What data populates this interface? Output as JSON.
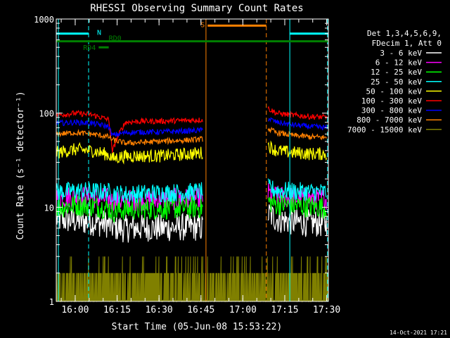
{
  "chart_data": {
    "type": "line",
    "title": "RHESSI Observing Summary Count Rates",
    "xlabel": "Start Time (05-Jun-08 15:53:22)",
    "ylabel": "Count Rate (s⁻¹ detector⁻¹)",
    "yscale": "log",
    "ylim": [
      1,
      1000
    ],
    "xlim": [
      15.887,
      17.51
    ],
    "x_ticks": [
      {
        "v": 16.0,
        "label": "16:00"
      },
      {
        "v": 16.25,
        "label": "16:15"
      },
      {
        "v": 16.5,
        "label": "16:30"
      },
      {
        "v": 16.75,
        "label": "16:45"
      },
      {
        "v": 17.0,
        "label": "17:00"
      },
      {
        "v": 17.25,
        "label": "17:15"
      },
      {
        "v": 17.5,
        "label": "17:30"
      }
    ],
    "y_ticks": [
      {
        "v": 1,
        "label": "1"
      },
      {
        "v": 10,
        "label": "10"
      },
      {
        "v": 100,
        "label": "100"
      },
      {
        "v": 1000,
        "label": "1000"
      }
    ],
    "legend_header": [
      "Det 1,3,4,5,6,9,",
      "FDecim 1, Att 0"
    ],
    "series": [
      {
        "name": "3 - 6 keV",
        "color": "#ffffff",
        "segments": [
          {
            "x": [
              15.887,
              16.0,
              16.1,
              16.2,
              16.22,
              16.3,
              16.4,
              16.5,
              16.6,
              16.7,
              16.76
            ],
            "y": [
              7.5,
              7.2,
              7.0,
              6.6,
              6.2,
              5.9,
              6.1,
              6.0,
              6.1,
              6.2,
              6.0
            ]
          },
          {
            "x": [
              17.15,
              17.2,
              17.3,
              17.4,
              17.5
            ],
            "y": [
              8.5,
              7.5,
              7.0,
              6.8,
              6.7
            ]
          }
        ],
        "noise": 0.15
      },
      {
        "name": "6 - 12 keV",
        "color": "#ff00ff",
        "segments": [
          {
            "x": [
              15.887,
              16.0,
              16.1,
              16.2,
              16.22,
              16.3,
              16.4,
              16.5,
              16.6,
              16.7,
              16.76
            ],
            "y": [
              12.5,
              13,
              12.8,
              12.2,
              11.5,
              11.8,
              12.0,
              12.1,
              12.2,
              12.3,
              12.4
            ]
          },
          {
            "x": [
              17.15,
              17.2,
              17.3,
              17.4,
              17.5
            ],
            "y": [
              14,
              13,
              12.6,
              12.3,
              12.2
            ]
          }
        ],
        "noise": 0.12
      },
      {
        "name": "12 - 25 keV",
        "color": "#00ff00",
        "segments": [
          {
            "x": [
              15.887,
              16.0,
              16.1,
              16.2,
              16.22,
              16.3,
              16.4,
              16.5,
              16.6,
              16.7,
              16.76
            ],
            "y": [
              10,
              10.5,
              10.3,
              9.8,
              9.0,
              9.5,
              9.6,
              9.7,
              9.8,
              9.9,
              10
            ]
          },
          {
            "x": [
              17.15,
              17.2,
              17.3,
              17.4,
              17.5
            ],
            "y": [
              11.5,
              10.8,
              10.4,
              10.2,
              10
            ]
          }
        ],
        "noise": 0.12
      },
      {
        "name": "25 - 50 keV",
        "color": "#00ffff",
        "segments": [
          {
            "x": [
              15.887,
              16.0,
              16.1,
              16.2,
              16.22,
              16.3,
              16.4,
              16.5,
              16.6,
              16.7,
              16.76
            ],
            "y": [
              14.5,
              15,
              14.8,
              14.5,
              14,
              13.8,
              14,
              14.2,
              14.3,
              14.5,
              14.8
            ]
          },
          {
            "x": [
              17.15,
              17.2,
              17.3,
              17.4,
              17.5
            ],
            "y": [
              16,
              15.2,
              14.8,
              14.6,
              14.5
            ]
          }
        ],
        "noise": 0.1
      },
      {
        "name": "50 - 100 keV",
        "color": "#ffff00",
        "segments": [
          {
            "x": [
              15.887,
              16.0,
              16.1,
              16.2,
              16.22,
              16.3,
              16.4,
              16.5,
              16.6,
              16.7,
              16.76
            ],
            "y": [
              38,
              41,
              40,
              36,
              33,
              35,
              35,
              35,
              36,
              37,
              38
            ]
          },
          {
            "x": [
              17.15,
              17.2,
              17.3,
              17.4,
              17.5
            ],
            "y": [
              45,
              40,
              38,
              37,
              37
            ]
          }
        ],
        "noise": 0.07
      },
      {
        "name": "100 - 300 keV",
        "color": "#ff0000",
        "segments": [
          {
            "x": [
              15.887,
              16.0,
              16.1,
              16.2,
              16.22,
              16.3,
              16.4,
              16.5,
              16.6,
              16.7,
              16.76
            ],
            "y": [
              95,
              100,
              96,
              85,
              38,
              80,
              82,
              82,
              83,
              84,
              85
            ]
          },
          {
            "x": [
              17.15,
              17.2,
              17.3,
              17.4,
              17.5
            ],
            "y": [
              112,
              100,
              95,
              92,
              90
            ]
          }
        ],
        "noise": 0.03
      },
      {
        "name": "300 - 800 keV",
        "color": "#0000ff",
        "segments": [
          {
            "x": [
              15.887,
              16.0,
              16.1,
              16.2,
              16.22,
              16.3,
              16.4,
              16.5,
              16.6,
              16.7,
              16.76
            ],
            "y": [
              78,
              80,
              78,
              72,
              58,
              62,
              63,
              63,
              64,
              65,
              66
            ]
          },
          {
            "x": [
              17.15,
              17.2,
              17.3,
              17.4,
              17.5
            ],
            "y": [
              88,
              80,
              75,
              72,
              70
            ]
          }
        ],
        "noise": 0.03
      },
      {
        "name": "800 - 7000 keV",
        "color": "#ff8000",
        "segments": [
          {
            "x": [
              15.887,
              16.0,
              16.1,
              16.2,
              16.22,
              16.3,
              16.4,
              16.5,
              16.6,
              16.7,
              16.76
            ],
            "y": [
              60,
              62,
              60,
              56,
              52,
              48,
              49,
              50,
              51,
              52,
              53
            ]
          },
          {
            "x": [
              17.15,
              17.2,
              17.3,
              17.4,
              17.5
            ],
            "y": [
              68,
              62,
              58,
              56,
              55
            ]
          }
        ],
        "noise": 0.03
      },
      {
        "name": "7000 - 15000 keV",
        "color": "#808000",
        "segments": [
          {
            "x": [
              15.887,
              17.51
            ],
            "y": [
              2,
              2
            ]
          }
        ],
        "noise": 0
      }
    ],
    "annotations": [
      {
        "label": "N",
        "color": "#00ffff",
        "x_from": 15.887,
        "x_to": 16.08,
        "y": 700
      },
      {
        "label": "",
        "color": "#00ffff",
        "x_from": 17.28,
        "x_to": 17.51,
        "y": 700
      },
      {
        "label": "S",
        "color": "#ff8000",
        "x_from": 16.79,
        "x_to": 17.14,
        "y": 850
      },
      {
        "label": "RD0",
        "color": "#008000",
        "x_from": 15.887,
        "x_to": 17.51,
        "y": 580
      },
      {
        "label": "RD4",
        "color": "#008000",
        "x_from": 16.14,
        "x_to": 16.2,
        "y": 500
      }
    ],
    "vertical_lines": [
      {
        "x": 15.9,
        "color": "#00ffff",
        "dash": false
      },
      {
        "x": 16.08,
        "color": "#00ffff",
        "dash": true
      },
      {
        "x": 16.78,
        "color": "#ff8000",
        "dash": false
      },
      {
        "x": 17.14,
        "color": "#ff8000",
        "dash": true
      },
      {
        "x": 17.28,
        "color": "#00ffff",
        "dash": false
      },
      {
        "x": 17.505,
        "color": "#00ffff",
        "dash": true
      }
    ],
    "footer": "14-Oct-2021 17:21"
  }
}
